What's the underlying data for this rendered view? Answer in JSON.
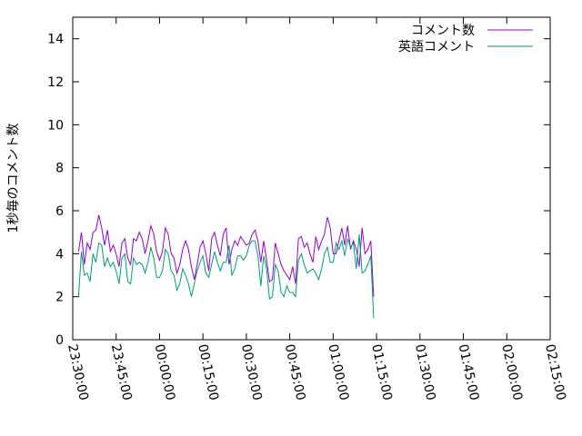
{
  "chart_data": {
    "type": "line",
    "title": "",
    "xlabel": "",
    "ylabel": "1秒毎のコメント数",
    "ylim": [
      0,
      15
    ],
    "yticks": [
      0,
      2,
      4,
      6,
      8,
      10,
      12,
      14
    ],
    "xlim": [
      "23:30:00",
      "02:15:00"
    ],
    "xticks": [
      "23:30:00",
      "23:45:00",
      "00:00:00",
      "00:15:00",
      "00:30:00",
      "00:45:00",
      "01:00:00",
      "01:15:00",
      "01:30:00",
      "01:45:00",
      "02:00:00",
      "02:15:00"
    ],
    "legend_position": "top-right",
    "grid": false,
    "x_start": "23:32:00",
    "x_step": "00:01:00",
    "series": [
      {
        "name": "コメント数",
        "color": "#9400d3",
        "values": [
          4.1,
          5.0,
          3.5,
          4.5,
          4.2,
          5.0,
          5.1,
          5.8,
          5.2,
          4.4,
          5.1,
          4.1,
          4.4,
          4.0,
          3.4,
          4.5,
          4.7,
          3.8,
          3.5,
          4.7,
          4.6,
          5.0,
          4.7,
          4.0,
          4.6,
          5.3,
          4.9,
          4.1,
          3.7,
          4.1,
          5.2,
          4.9,
          4.0,
          3.8,
          3.1,
          3.5,
          4.2,
          4.6,
          4.2,
          3.4,
          2.8,
          3.5,
          4.3,
          4.6,
          4.0,
          3.2,
          4.7,
          5.0,
          4.4,
          3.9,
          4.9,
          5.2,
          3.5,
          4.2,
          4.6,
          4.4,
          4.8,
          4.6,
          4.4,
          4.5,
          4.9,
          5.1,
          4.6,
          3.6,
          4.6,
          3.7,
          2.7,
          2.8,
          4.5,
          4.0,
          3.5,
          3.2,
          3.0,
          2.8,
          3.4,
          2.6,
          4.7,
          4.8,
          4.3,
          4.5,
          4.0,
          3.6,
          4.8,
          4.2,
          4.6,
          4.9,
          5.7,
          5.2,
          4.0,
          4.0,
          4.6,
          5.2,
          4.4,
          5.3,
          4.2,
          4.6,
          4.2,
          3.4,
          5.2,
          4.0,
          4.2,
          4.6,
          2.0
        ]
      },
      {
        "name": "英語コメント",
        "color": "#009e73",
        "values": [
          2.0,
          4.1,
          3.0,
          3.1,
          2.7,
          4.0,
          3.6,
          4.5,
          4.4,
          3.4,
          3.8,
          3.4,
          3.6,
          3.2,
          2.6,
          3.8,
          4.0,
          2.7,
          2.6,
          3.8,
          3.5,
          3.6,
          3.5,
          3.1,
          3.6,
          4.3,
          3.8,
          2.9,
          2.9,
          3.2,
          4.2,
          4.0,
          3.2,
          3.0,
          2.3,
          2.6,
          3.3,
          3.0,
          2.6,
          2.0,
          2.6,
          3.2,
          3.6,
          3.9,
          3.1,
          2.9,
          3.5,
          4.1,
          3.6,
          3.2,
          3.6,
          3.6,
          4.4,
          3.0,
          3.3,
          3.9,
          3.9,
          3.7,
          3.9,
          4.4,
          4.6,
          4.6,
          3.9,
          2.5,
          3.9,
          3.3,
          1.9,
          2.0,
          3.5,
          3.2,
          2.2,
          2.0,
          2.5,
          2.2,
          2.2,
          2.0,
          3.7,
          4.0,
          3.5,
          3.1,
          3.2,
          3.3,
          3.1,
          2.8,
          3.3,
          4.0,
          4.3,
          3.6,
          3.6,
          4.5,
          4.2,
          4.6,
          3.9,
          4.7,
          4.3,
          4.5,
          3.3,
          4.9,
          3.1,
          3.2,
          3.5,
          3.9,
          1.0
        ]
      }
    ]
  }
}
